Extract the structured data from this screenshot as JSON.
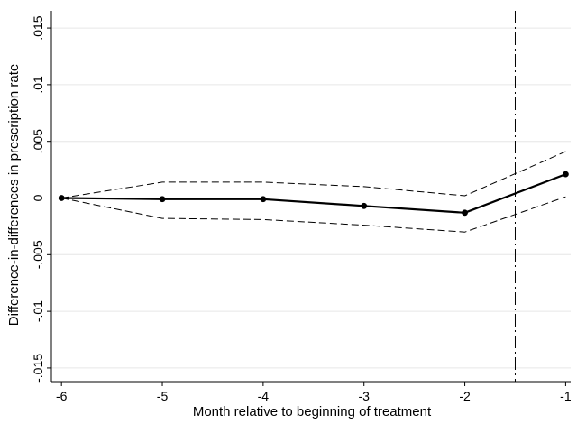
{
  "chart_data": {
    "type": "line",
    "title": "",
    "xlabel": "Month relative to beginning of treatment",
    "ylabel": "Difference-in-differences in prescription rate",
    "x": [
      -6,
      -5,
      -4,
      -3,
      -2,
      -1
    ],
    "xticks": [
      -6,
      -5,
      -4,
      -3,
      -2,
      -1
    ],
    "xtick_labels": [
      "-6",
      "-5",
      "-4",
      "-3",
      "-2",
      "-1"
    ],
    "yticks": [
      -0.015,
      -0.01,
      -0.005,
      0,
      0.005,
      0.01,
      0.015
    ],
    "ytick_labels": [
      "-.015",
      "-.01",
      "-.005",
      "0",
      ".005",
      ".01",
      ".015"
    ],
    "xlim": [
      -6.1,
      -0.95
    ],
    "ylim": [
      -0.0162,
      0.0162
    ],
    "grid": true,
    "legend": "none",
    "series": [
      {
        "role": "estimate",
        "style": "solid",
        "markers": true,
        "values": [
          0,
          -0.0001,
          -0.0001,
          -0.0007,
          -0.0013,
          0.0021
        ]
      },
      {
        "role": "upper-ci",
        "style": "dashed",
        "markers": false,
        "values": [
          0,
          0.0014,
          0.0014,
          0.001,
          0.0002,
          0.0041
        ]
      },
      {
        "role": "lower-ci",
        "style": "dashed",
        "markers": false,
        "values": [
          0,
          -0.0018,
          -0.0019,
          -0.0024,
          -0.003,
          0.0001
        ]
      }
    ],
    "reference_lines": [
      {
        "axis": "y",
        "value": 0,
        "style": "long-dash"
      },
      {
        "axis": "x",
        "value": -1.5,
        "style": "dash-dot"
      }
    ],
    "colors": {
      "line": "#000000",
      "grid": "#e6e6e6",
      "background": "#ffffff"
    }
  }
}
